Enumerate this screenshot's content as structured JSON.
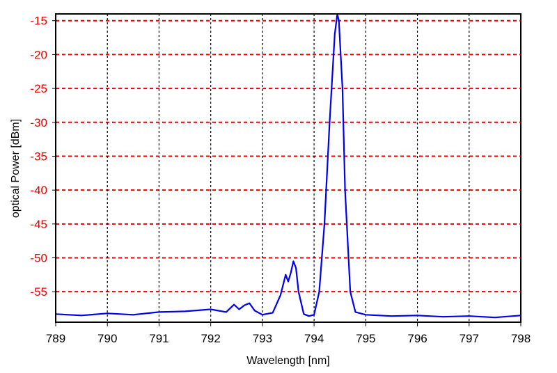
{
  "chart_data": {
    "type": "line",
    "title": "",
    "xlabel": "Wavelength [nm]",
    "ylabel": "optical Power [dBm]",
    "xlim": [
      789,
      798
    ],
    "ylim": [
      -59.5,
      -14
    ],
    "x_ticks": [
      789,
      790,
      791,
      792,
      793,
      794,
      795,
      796,
      797,
      798
    ],
    "y_ticks": [
      -15,
      -20,
      -25,
      -30,
      -35,
      -40,
      -45,
      -50,
      -55
    ],
    "grid": true,
    "legend": "none",
    "colors": {
      "line": "#0000ee",
      "y_grid": "#ee0000",
      "x_grid": "#000000",
      "y_tick_labels": "#ee0000",
      "x_tick_labels": "#000000"
    },
    "series": [
      {
        "x": [
          789.0,
          789.5,
          790.0,
          790.5,
          791.0,
          791.5,
          792.0,
          792.3,
          792.45,
          792.55,
          792.65,
          792.75,
          792.85,
          793.0,
          793.2,
          793.35,
          793.45,
          793.5,
          793.55,
          793.6,
          793.65,
          793.7,
          793.8,
          793.9,
          794.0,
          794.1,
          794.2,
          794.3,
          794.4,
          794.45,
          794.48,
          794.55,
          794.6,
          794.7,
          794.8,
          795.0,
          795.5,
          796.0,
          796.5,
          797.0,
          797.5,
          798.0
        ],
        "y": [
          -58.3,
          -58.5,
          -58.2,
          -58.4,
          -58.0,
          -57.9,
          -57.6,
          -58.0,
          -56.9,
          -57.6,
          -57.0,
          -56.7,
          -57.8,
          -58.4,
          -58.1,
          -55.5,
          -52.5,
          -53.5,
          -52.2,
          -50.5,
          -51.5,
          -55.0,
          -58.3,
          -58.6,
          -58.4,
          -55.0,
          -45.0,
          -30.0,
          -17.0,
          -14.0,
          -15.0,
          -25.0,
          -40.0,
          -55.0,
          -58.0,
          -58.4,
          -58.6,
          -58.5,
          -58.7,
          -58.6,
          -58.8,
          -58.5
        ]
      }
    ]
  }
}
